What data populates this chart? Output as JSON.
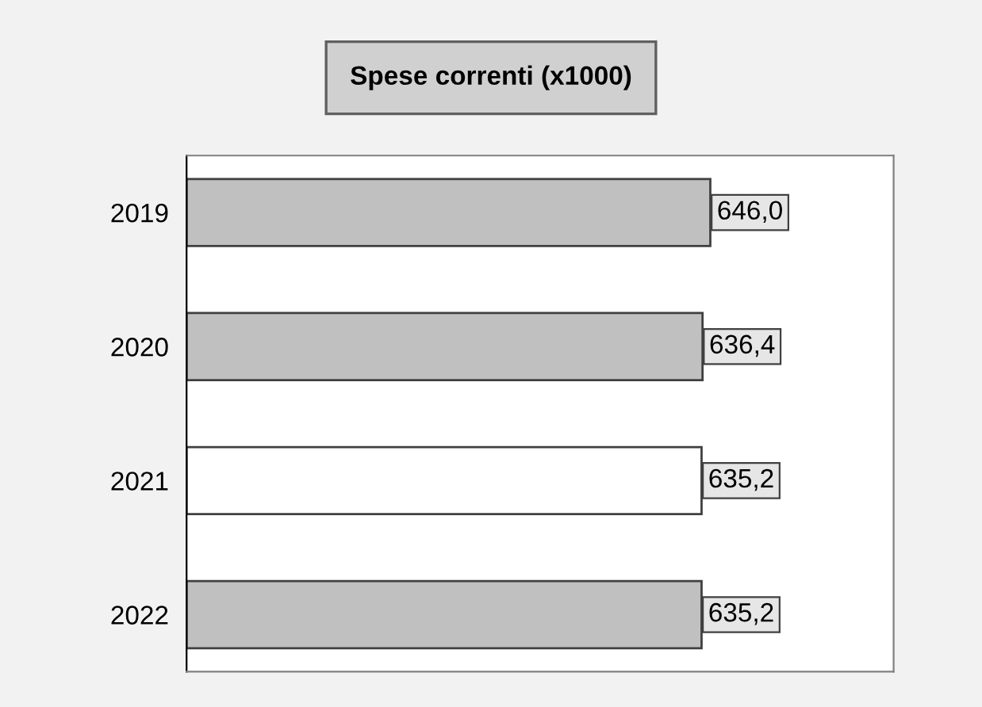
{
  "chart_data": {
    "type": "bar",
    "orientation": "horizontal",
    "title": "Spese correnti (x1000)",
    "categories": [
      "2019",
      "2020",
      "2021",
      "2022"
    ],
    "values": [
      646.0,
      636.4,
      635.2,
      635.2
    ],
    "colors": [
      "#c0c0c0",
      "#c0c0c0",
      "#ffffff",
      "#c0c0c0"
    ],
    "value_labels": [
      "646,0",
      "636,4",
      "635,2",
      "635,2"
    ],
    "tick_labels": "y",
    "grid": false,
    "legend": false
  }
}
